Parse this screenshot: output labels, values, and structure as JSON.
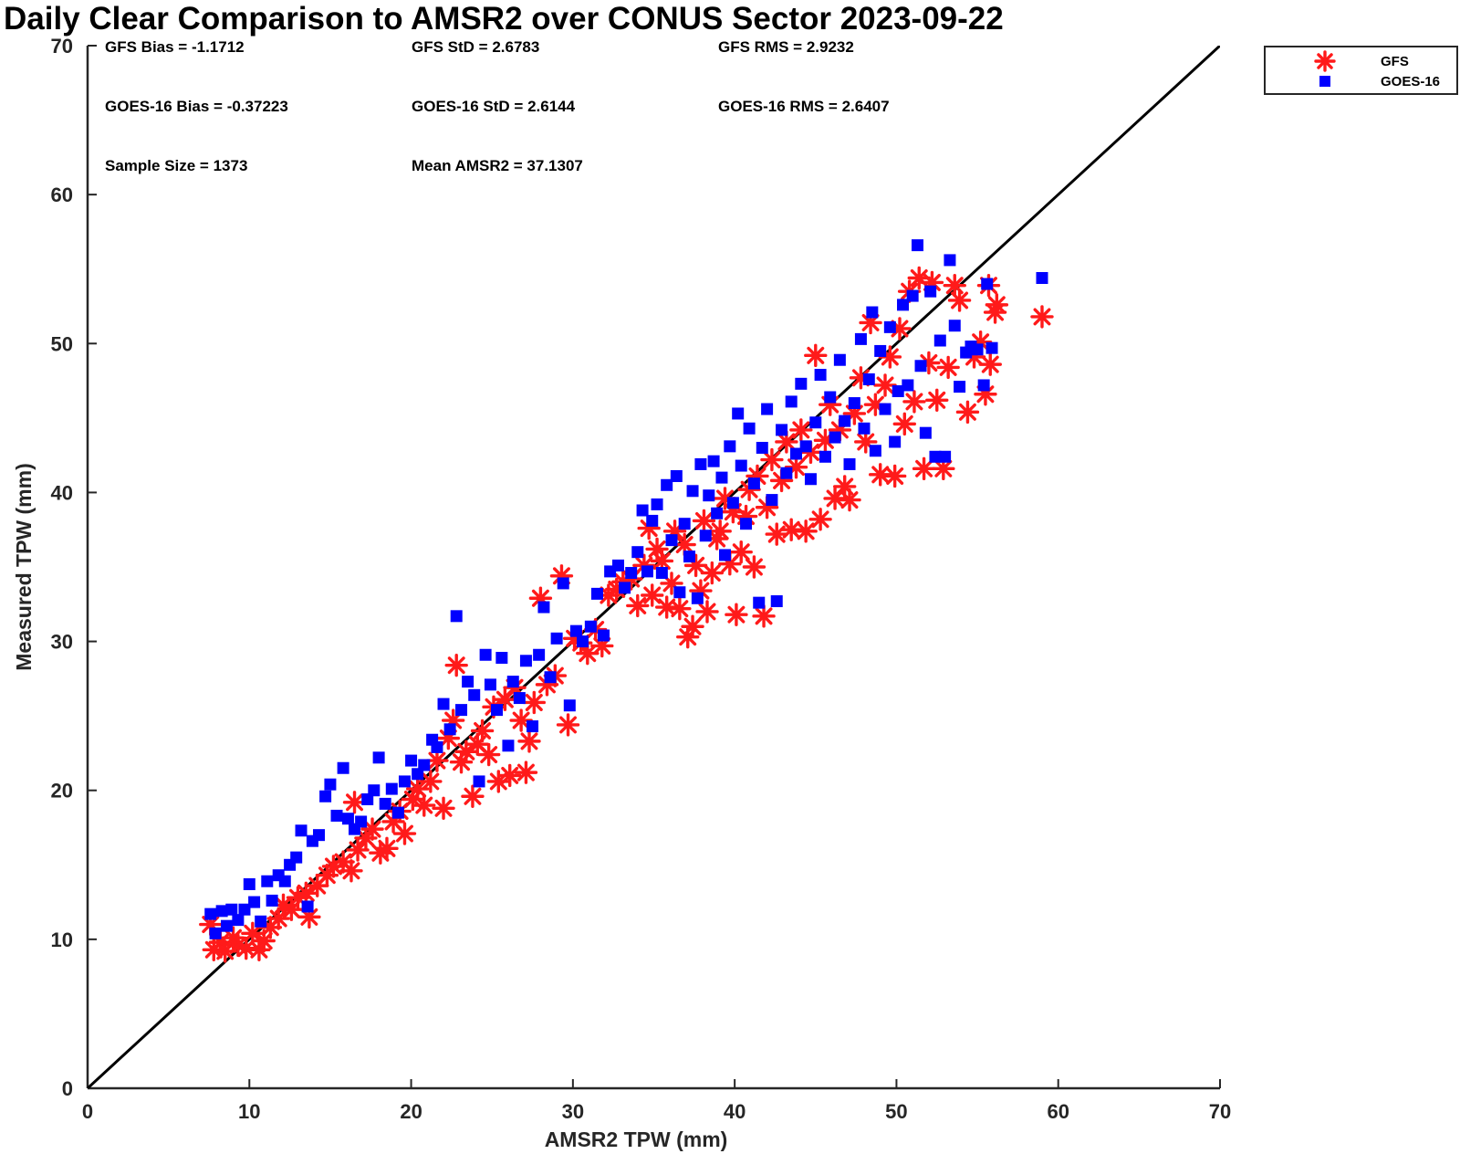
{
  "chart_data": {
    "type": "scatter",
    "title": "Daily Clear Comparison to AMSR2 over CONUS Sector 2023-09-22",
    "xlabel": "AMSR2 TPW (mm)",
    "ylabel": "Measured TPW (mm)",
    "xlim": [
      0,
      70
    ],
    "ylim": [
      0,
      70
    ],
    "xticks": [
      "0",
      "10",
      "20",
      "30",
      "40",
      "50",
      "60",
      "70"
    ],
    "yticks": [
      "0",
      "10",
      "20",
      "30",
      "40",
      "50",
      "60",
      "70"
    ],
    "grid": false,
    "legend_position": "outside-top-right",
    "reference_line": {
      "type": "one-to-one",
      "x": [
        0,
        70
      ],
      "y": [
        0,
        70
      ],
      "color": "#000000"
    },
    "stats": [
      "GFS Bias = -1.1712",
      "GFS StD = 2.6783",
      "GFS RMS = 2.9232",
      "GOES-16 Bias = -0.37223",
      "GOES-16 StD = 2.6144",
      "GOES-16 RMS = 2.6407",
      "Sample Size = 1373",
      "Mean AMSR2 = 37.1307"
    ],
    "series": [
      {
        "name": "GFS",
        "marker": "asterisk",
        "color": "#ff1a1a",
        "points": [
          [
            7.6,
            11.0
          ],
          [
            7.8,
            9.3
          ],
          [
            8.2,
            9.8
          ],
          [
            8.5,
            9.2
          ],
          [
            9.0,
            10.1
          ],
          [
            9.3,
            9.6
          ],
          [
            9.8,
            9.4
          ],
          [
            10.2,
            10.4
          ],
          [
            10.6,
            9.3
          ],
          [
            10.9,
            9.9
          ],
          [
            11.3,
            10.8
          ],
          [
            11.8,
            11.4
          ],
          [
            12.1,
            12.3
          ],
          [
            12.6,
            12.0
          ],
          [
            13.0,
            12.8
          ],
          [
            13.5,
            13.1
          ],
          [
            13.7,
            11.5
          ],
          [
            14.2,
            13.6
          ],
          [
            14.8,
            14.3
          ],
          [
            15.2,
            14.9
          ],
          [
            15.8,
            15.2
          ],
          [
            16.3,
            14.6
          ],
          [
            16.5,
            19.2
          ],
          [
            16.7,
            16.0
          ],
          [
            17.2,
            16.8
          ],
          [
            17.6,
            17.4
          ],
          [
            18.1,
            15.8
          ],
          [
            18.5,
            16.1
          ],
          [
            18.9,
            17.9
          ],
          [
            19.3,
            18.6
          ],
          [
            19.6,
            17.1
          ],
          [
            20.1,
            19.4
          ],
          [
            20.4,
            20.1
          ],
          [
            20.8,
            19.0
          ],
          [
            21.2,
            20.6
          ],
          [
            21.6,
            22.0
          ],
          [
            22.0,
            18.8
          ],
          [
            22.3,
            23.5
          ],
          [
            22.6,
            24.7
          ],
          [
            22.8,
            28.4
          ],
          [
            23.1,
            21.9
          ],
          [
            23.4,
            22.6
          ],
          [
            23.8,
            19.6
          ],
          [
            24.1,
            23.1
          ],
          [
            24.4,
            24.0
          ],
          [
            24.8,
            22.4
          ],
          [
            25.1,
            25.6
          ],
          [
            25.4,
            20.6
          ],
          [
            25.8,
            26.1
          ],
          [
            26.1,
            21.0
          ],
          [
            26.4,
            26.9
          ],
          [
            26.8,
            24.7
          ],
          [
            27.1,
            21.2
          ],
          [
            27.3,
            23.3
          ],
          [
            27.6,
            25.9
          ],
          [
            28.0,
            32.9
          ],
          [
            28.4,
            27.1
          ],
          [
            28.9,
            27.7
          ],
          [
            29.3,
            34.4
          ],
          [
            29.7,
            24.4
          ],
          [
            30.1,
            30.2
          ],
          [
            30.5,
            29.9
          ],
          [
            30.9,
            29.2
          ],
          [
            31.4,
            30.8
          ],
          [
            31.8,
            29.7
          ],
          [
            32.2,
            33.1
          ],
          [
            32.7,
            33.5
          ],
          [
            33.1,
            34.0
          ],
          [
            33.6,
            34.2
          ],
          [
            34.0,
            32.4
          ],
          [
            34.4,
            35.1
          ],
          [
            34.7,
            37.6
          ],
          [
            34.9,
            33.1
          ],
          [
            35.2,
            36.2
          ],
          [
            35.5,
            35.4
          ],
          [
            35.8,
            32.3
          ],
          [
            36.1,
            33.9
          ],
          [
            36.3,
            37.4
          ],
          [
            36.6,
            32.2
          ],
          [
            36.9,
            36.5
          ],
          [
            37.1,
            30.3
          ],
          [
            37.4,
            31.0
          ],
          [
            37.6,
            35.1
          ],
          [
            37.9,
            33.4
          ],
          [
            38.1,
            38.1
          ],
          [
            38.3,
            32.0
          ],
          [
            38.6,
            34.6
          ],
          [
            38.9,
            36.9
          ],
          [
            39.1,
            37.4
          ],
          [
            39.4,
            39.6
          ],
          [
            39.7,
            35.2
          ],
          [
            39.9,
            38.7
          ],
          [
            40.1,
            31.8
          ],
          [
            40.4,
            36.0
          ],
          [
            40.7,
            38.4
          ],
          [
            40.9,
            40.2
          ],
          [
            41.2,
            35.0
          ],
          [
            41.4,
            41.1
          ],
          [
            41.8,
            31.7
          ],
          [
            42.0,
            39.0
          ],
          [
            42.3,
            42.2
          ],
          [
            42.6,
            37.2
          ],
          [
            42.9,
            40.8
          ],
          [
            43.2,
            43.4
          ],
          [
            43.5,
            37.5
          ],
          [
            43.8,
            41.7
          ],
          [
            44.1,
            44.2
          ],
          [
            44.4,
            37.4
          ],
          [
            44.7,
            42.7
          ],
          [
            45.0,
            49.2
          ],
          [
            45.3,
            38.2
          ],
          [
            45.6,
            43.5
          ],
          [
            45.9,
            45.9
          ],
          [
            46.2,
            39.6
          ],
          [
            46.5,
            44.2
          ],
          [
            46.8,
            40.4
          ],
          [
            47.1,
            39.5
          ],
          [
            47.4,
            45.3
          ],
          [
            47.8,
            47.7
          ],
          [
            48.1,
            43.4
          ],
          [
            48.4,
            51.4
          ],
          [
            48.7,
            45.9
          ],
          [
            49.0,
            41.2
          ],
          [
            49.3,
            47.2
          ],
          [
            49.6,
            49.1
          ],
          [
            49.9,
            41.1
          ],
          [
            50.2,
            51.0
          ],
          [
            50.5,
            44.6
          ],
          [
            50.8,
            53.5
          ],
          [
            51.1,
            46.1
          ],
          [
            51.4,
            54.4
          ],
          [
            51.7,
            41.6
          ],
          [
            52.0,
            48.7
          ],
          [
            52.2,
            54.1
          ],
          [
            52.5,
            46.2
          ],
          [
            52.9,
            41.6
          ],
          [
            53.2,
            48.4
          ],
          [
            53.6,
            53.9
          ],
          [
            53.9,
            52.9
          ],
          [
            54.4,
            45.4
          ],
          [
            54.8,
            49.1
          ],
          [
            55.2,
            50.1
          ],
          [
            55.5,
            46.6
          ],
          [
            55.7,
            53.9
          ],
          [
            55.8,
            48.6
          ],
          [
            56.1,
            52.1
          ],
          [
            56.2,
            52.6
          ],
          [
            59.0,
            51.8
          ]
        ]
      },
      {
        "name": "GOES-16",
        "marker": "square",
        "color": "#0000ff",
        "points": [
          [
            7.6,
            11.7
          ],
          [
            7.9,
            10.4
          ],
          [
            8.3,
            11.9
          ],
          [
            8.6,
            10.9
          ],
          [
            8.9,
            12.0
          ],
          [
            9.3,
            11.3
          ],
          [
            9.7,
            12.0
          ],
          [
            10.0,
            13.7
          ],
          [
            10.3,
            12.5
          ],
          [
            10.7,
            11.2
          ],
          [
            11.1,
            13.9
          ],
          [
            11.4,
            12.6
          ],
          [
            11.8,
            14.3
          ],
          [
            12.2,
            13.9
          ],
          [
            12.5,
            15.0
          ],
          [
            12.9,
            15.5
          ],
          [
            13.2,
            17.3
          ],
          [
            13.6,
            12.2
          ],
          [
            13.9,
            16.6
          ],
          [
            14.3,
            17.0
          ],
          [
            14.7,
            19.6
          ],
          [
            15.0,
            20.4
          ],
          [
            15.4,
            18.3
          ],
          [
            15.8,
            21.5
          ],
          [
            16.1,
            18.1
          ],
          [
            16.5,
            17.4
          ],
          [
            16.9,
            17.9
          ],
          [
            17.3,
            19.4
          ],
          [
            17.7,
            20.0
          ],
          [
            18.0,
            22.2
          ],
          [
            18.4,
            19.1
          ],
          [
            18.8,
            20.1
          ],
          [
            19.2,
            18.5
          ],
          [
            19.6,
            20.6
          ],
          [
            20.0,
            22.0
          ],
          [
            20.4,
            21.1
          ],
          [
            20.8,
            21.7
          ],
          [
            21.3,
            23.4
          ],
          [
            21.6,
            22.9
          ],
          [
            22.0,
            25.8
          ],
          [
            22.4,
            24.1
          ],
          [
            22.8,
            31.7
          ],
          [
            23.1,
            25.4
          ],
          [
            23.5,
            27.3
          ],
          [
            23.9,
            26.4
          ],
          [
            24.2,
            20.6
          ],
          [
            24.6,
            29.1
          ],
          [
            24.9,
            27.1
          ],
          [
            25.3,
            25.4
          ],
          [
            25.6,
            28.9
          ],
          [
            26.0,
            23.0
          ],
          [
            26.3,
            27.3
          ],
          [
            26.7,
            26.2
          ],
          [
            27.1,
            28.7
          ],
          [
            27.5,
            24.3
          ],
          [
            27.9,
            29.1
          ],
          [
            28.2,
            32.3
          ],
          [
            28.6,
            27.6
          ],
          [
            29.0,
            30.2
          ],
          [
            29.4,
            33.9
          ],
          [
            29.8,
            25.7
          ],
          [
            30.2,
            30.7
          ],
          [
            30.6,
            30.0
          ],
          [
            31.1,
            31.0
          ],
          [
            31.5,
            33.2
          ],
          [
            31.9,
            30.4
          ],
          [
            32.3,
            34.7
          ],
          [
            32.8,
            35.1
          ],
          [
            33.2,
            33.6
          ],
          [
            33.6,
            34.6
          ],
          [
            34.0,
            36.0
          ],
          [
            34.3,
            38.8
          ],
          [
            34.6,
            34.7
          ],
          [
            34.9,
            38.1
          ],
          [
            35.2,
            39.2
          ],
          [
            35.5,
            34.6
          ],
          [
            35.8,
            40.5
          ],
          [
            36.1,
            36.8
          ],
          [
            36.4,
            41.1
          ],
          [
            36.6,
            33.3
          ],
          [
            36.9,
            37.9
          ],
          [
            37.2,
            35.7
          ],
          [
            37.4,
            40.1
          ],
          [
            37.7,
            32.9
          ],
          [
            37.9,
            41.9
          ],
          [
            38.2,
            37.1
          ],
          [
            38.4,
            39.8
          ],
          [
            38.7,
            42.1
          ],
          [
            38.9,
            38.6
          ],
          [
            39.2,
            41.0
          ],
          [
            39.4,
            35.8
          ],
          [
            39.7,
            43.1
          ],
          [
            39.9,
            39.3
          ],
          [
            40.2,
            45.3
          ],
          [
            40.4,
            41.8
          ],
          [
            40.7,
            37.9
          ],
          [
            40.9,
            44.3
          ],
          [
            41.2,
            40.6
          ],
          [
            41.5,
            32.6
          ],
          [
            41.7,
            43.0
          ],
          [
            42.0,
            45.6
          ],
          [
            42.3,
            39.5
          ],
          [
            42.6,
            32.7
          ],
          [
            42.9,
            44.2
          ],
          [
            43.2,
            41.3
          ],
          [
            43.5,
            46.1
          ],
          [
            43.8,
            42.6
          ],
          [
            44.1,
            47.3
          ],
          [
            44.4,
            43.1
          ],
          [
            44.7,
            40.9
          ],
          [
            45.0,
            44.7
          ],
          [
            45.3,
            47.9
          ],
          [
            45.6,
            42.4
          ],
          [
            45.9,
            46.4
          ],
          [
            46.2,
            43.7
          ],
          [
            46.5,
            48.9
          ],
          [
            46.8,
            44.8
          ],
          [
            47.1,
            41.9
          ],
          [
            47.4,
            46.0
          ],
          [
            47.8,
            50.3
          ],
          [
            48.0,
            44.3
          ],
          [
            48.3,
            47.6
          ],
          [
            48.5,
            52.1
          ],
          [
            48.7,
            42.8
          ],
          [
            49.0,
            49.5
          ],
          [
            49.3,
            45.6
          ],
          [
            49.6,
            51.1
          ],
          [
            49.9,
            43.4
          ],
          [
            50.1,
            46.8
          ],
          [
            50.4,
            52.6
          ],
          [
            50.7,
            47.2
          ],
          [
            51.0,
            53.2
          ],
          [
            51.3,
            56.6
          ],
          [
            51.5,
            48.5
          ],
          [
            51.8,
            44.0
          ],
          [
            52.1,
            53.5
          ],
          [
            52.4,
            42.4
          ],
          [
            52.7,
            50.2
          ],
          [
            53.0,
            42.4
          ],
          [
            53.3,
            55.6
          ],
          [
            53.6,
            51.2
          ],
          [
            53.9,
            47.1
          ],
          [
            54.3,
            49.4
          ],
          [
            54.6,
            49.8
          ],
          [
            55.0,
            49.6
          ],
          [
            55.4,
            47.2
          ],
          [
            55.6,
            54.0
          ],
          [
            55.9,
            49.7
          ],
          [
            59.0,
            54.4
          ]
        ]
      }
    ]
  }
}
